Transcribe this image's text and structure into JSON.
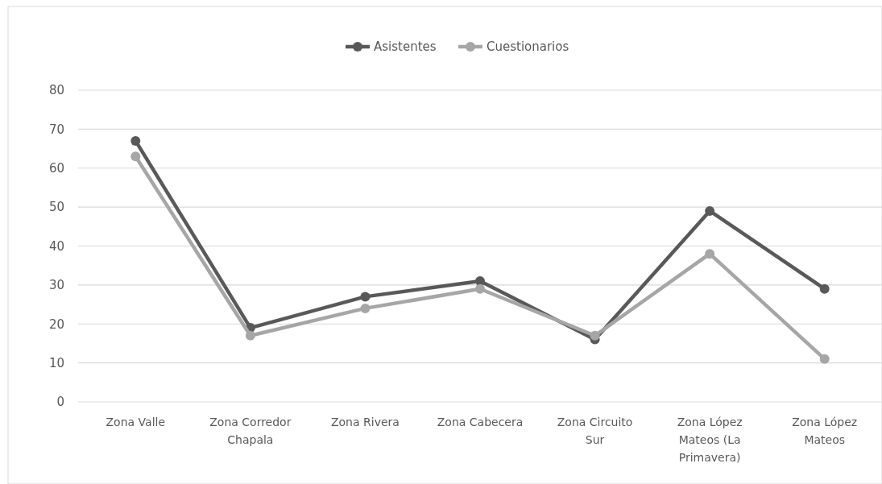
{
  "chart_data": {
    "type": "line",
    "categories": [
      "Zona Valle",
      "Zona Corredor Chapala",
      "Zona Rivera",
      "Zona Cabecera",
      "Zona Circuito Sur",
      "Zona López Mateos (La Primavera)",
      "Zona López Mateos"
    ],
    "series": [
      {
        "name": "Asistentes",
        "color": "#595959",
        "values": [
          67,
          19,
          27,
          31,
          16,
          49,
          29
        ]
      },
      {
        "name": "Cuestionarios",
        "color": "#a6a6a6",
        "values": [
          63,
          17,
          24,
          29,
          17,
          38,
          11
        ]
      }
    ],
    "ylim": [
      0,
      80
    ],
    "yticks": [
      0,
      10,
      20,
      30,
      40,
      50,
      60,
      70,
      80
    ],
    "grid": "y",
    "legend": "top",
    "marker": "circle",
    "line_style": "solid"
  }
}
